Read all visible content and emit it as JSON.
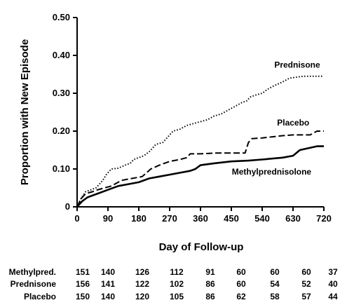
{
  "chart_data": {
    "type": "line",
    "title": "",
    "xlabel": "Day of Follow-up",
    "ylabel": "Proportion with New Episode",
    "xlim": [
      0,
      720
    ],
    "ylim": [
      0,
      0.5
    ],
    "x_ticks": [
      0,
      90,
      180,
      270,
      360,
      450,
      540,
      630,
      720
    ],
    "x_tick_labels": [
      "0",
      "90",
      "180",
      "270",
      "360",
      "450",
      "540",
      "630",
      "720"
    ],
    "y_ticks": [
      0,
      0.1,
      0.2,
      0.3,
      0.4,
      0.5
    ],
    "y_tick_labels": [
      "0",
      "0.10",
      "0.20",
      "0.30",
      "0.40",
      "0.50"
    ],
    "grid": false,
    "legend": "none",
    "series": [
      {
        "name": "Prednisone",
        "style": "dotted",
        "points": [
          [
            0,
            0
          ],
          [
            3,
            0.005
          ],
          [
            10,
            0.02
          ],
          [
            25,
            0.04
          ],
          [
            40,
            0.045
          ],
          [
            55,
            0.05
          ],
          [
            65,
            0.06
          ],
          [
            75,
            0.07
          ],
          [
            85,
            0.085
          ],
          [
            100,
            0.1
          ],
          [
            120,
            0.102
          ],
          [
            140,
            0.11
          ],
          [
            155,
            0.115
          ],
          [
            165,
            0.125
          ],
          [
            180,
            0.13
          ],
          [
            195,
            0.135
          ],
          [
            210,
            0.145
          ],
          [
            230,
            0.165
          ],
          [
            250,
            0.17
          ],
          [
            265,
            0.185
          ],
          [
            280,
            0.2
          ],
          [
            300,
            0.205
          ],
          [
            320,
            0.215
          ],
          [
            340,
            0.22
          ],
          [
            360,
            0.225
          ],
          [
            380,
            0.23
          ],
          [
            400,
            0.24
          ],
          [
            420,
            0.245
          ],
          [
            440,
            0.255
          ],
          [
            460,
            0.265
          ],
          [
            480,
            0.275
          ],
          [
            495,
            0.28
          ],
          [
            505,
            0.29
          ],
          [
            520,
            0.295
          ],
          [
            540,
            0.3
          ],
          [
            555,
            0.31
          ],
          [
            575,
            0.32
          ],
          [
            600,
            0.33
          ],
          [
            620,
            0.34
          ],
          [
            660,
            0.345
          ],
          [
            720,
            0.345
          ]
        ]
      },
      {
        "name": "Placebo",
        "style": "dashed",
        "points": [
          [
            0,
            0
          ],
          [
            3,
            0.005
          ],
          [
            10,
            0.02
          ],
          [
            25,
            0.035
          ],
          [
            45,
            0.04
          ],
          [
            60,
            0.045
          ],
          [
            80,
            0.05
          ],
          [
            100,
            0.055
          ],
          [
            130,
            0.07
          ],
          [
            160,
            0.075
          ],
          [
            190,
            0.08
          ],
          [
            215,
            0.1
          ],
          [
            240,
            0.11
          ],
          [
            270,
            0.12
          ],
          [
            300,
            0.125
          ],
          [
            320,
            0.13
          ],
          [
            330,
            0.14
          ],
          [
            360,
            0.14
          ],
          [
            400,
            0.142
          ],
          [
            440,
            0.142
          ],
          [
            470,
            0.142
          ],
          [
            490,
            0.142
          ],
          [
            500,
            0.17
          ],
          [
            510,
            0.18
          ],
          [
            540,
            0.182
          ],
          [
            570,
            0.185
          ],
          [
            600,
            0.188
          ],
          [
            630,
            0.19
          ],
          [
            680,
            0.19
          ],
          [
            700,
            0.2
          ],
          [
            720,
            0.2
          ]
        ]
      },
      {
        "name": "Methylprednisolone",
        "style": "solid",
        "points": [
          [
            0,
            0
          ],
          [
            5,
            0.005
          ],
          [
            15,
            0.015
          ],
          [
            30,
            0.025
          ],
          [
            60,
            0.035
          ],
          [
            90,
            0.045
          ],
          [
            120,
            0.055
          ],
          [
            150,
            0.06
          ],
          [
            180,
            0.065
          ],
          [
            210,
            0.075
          ],
          [
            240,
            0.08
          ],
          [
            270,
            0.085
          ],
          [
            300,
            0.09
          ],
          [
            330,
            0.095
          ],
          [
            345,
            0.1
          ],
          [
            360,
            0.11
          ],
          [
            400,
            0.115
          ],
          [
            450,
            0.12
          ],
          [
            500,
            0.122
          ],
          [
            540,
            0.125
          ],
          [
            600,
            0.13
          ],
          [
            630,
            0.135
          ],
          [
            650,
            0.15
          ],
          [
            700,
            0.16
          ],
          [
            720,
            0.16
          ]
        ]
      }
    ],
    "annotations": [
      {
        "text": "Prednisone",
        "x": 600,
        "y": 0.345
      },
      {
        "text": "Placebo",
        "x": 608,
        "y": 0.2
      },
      {
        "text": "Methylprednisolone",
        "x": 605,
        "y": 0.085
      }
    ],
    "risk_table": {
      "x": [
        0,
        90,
        180,
        270,
        360,
        450,
        540,
        630,
        720
      ],
      "rows": [
        {
          "label": "Methylpred.",
          "values": [
            "151",
            "140",
            "126",
            "112",
            "91",
            "60",
            "60",
            "60",
            "37"
          ]
        },
        {
          "label": "Prednisone",
          "values": [
            "156",
            "141",
            "122",
            "102",
            "86",
            "60",
            "54",
            "52",
            "40"
          ]
        },
        {
          "label": "Placebo",
          "values": [
            "150",
            "140",
            "120",
            "105",
            "86",
            "62",
            "58",
            "57",
            "44"
          ]
        }
      ]
    }
  }
}
